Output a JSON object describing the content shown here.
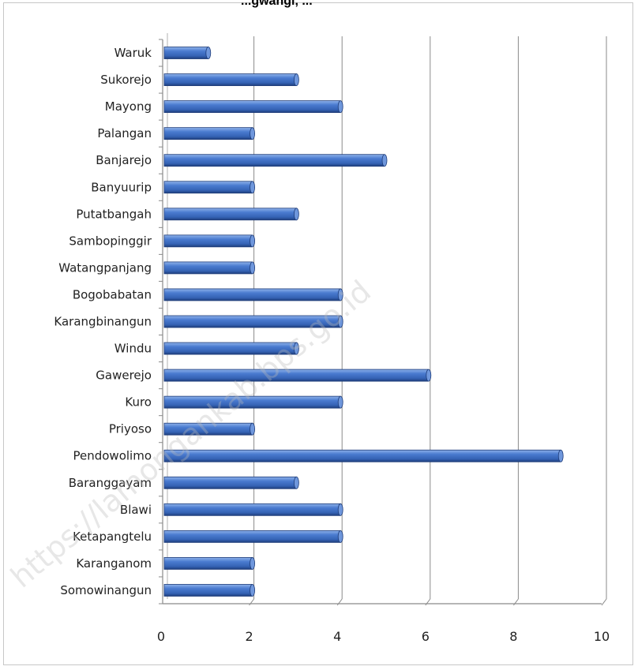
{
  "chart_data": {
    "type": "bar",
    "orientation": "horizontal",
    "title": "",
    "title_visible_fragment": "...gwangi, ...",
    "xlabel": "",
    "ylabel": "",
    "categories": [
      "Waruk",
      "Sukorejo",
      "Mayong",
      "Palangan",
      "Banjarejo",
      "Banyuurip",
      "Putatbangah",
      "Sambopinggir",
      "Watangpanjang",
      "Bogobabatan",
      "Karangbinangun",
      "Windu",
      "Gawerejo",
      "Kuro",
      "Priyoso",
      "Pendowolimo",
      "Baranggayam",
      "Blawi",
      "Ketapangtelu",
      "Karanganom",
      "Somowinangun"
    ],
    "values": [
      1,
      3,
      4,
      2,
      5,
      2,
      3,
      2,
      2,
      4,
      4,
      3,
      6,
      4,
      2,
      9,
      3,
      4,
      4,
      2,
      2
    ],
    "xlim": [
      0,
      10
    ],
    "xticks": [
      "0",
      "2",
      "4",
      "6",
      "8",
      "10"
    ],
    "grid": "vertical",
    "legend": "none",
    "bar_color": "#3f6fc1",
    "watermark": "https://lamongankab.bps.go.id"
  }
}
